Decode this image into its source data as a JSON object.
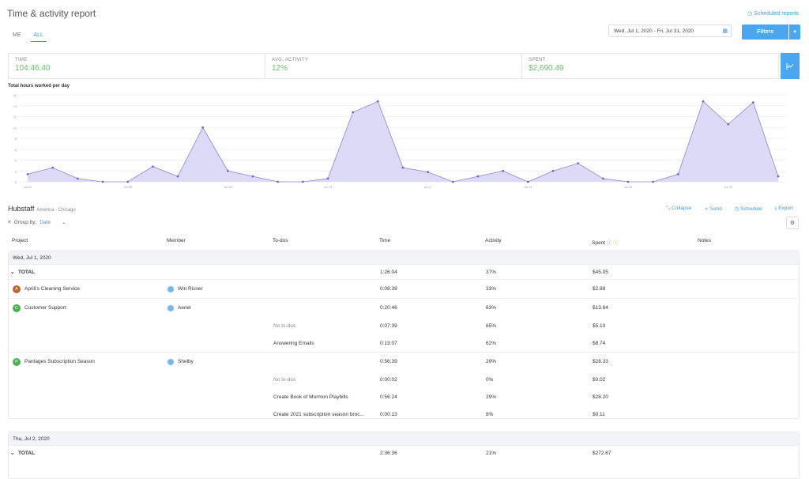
{
  "header": {
    "title": "Time & activity report",
    "scheduled_reports": "Scheduled reports"
  },
  "tabs": [
    {
      "label": "ME"
    },
    {
      "label": "ALL",
      "active": true
    }
  ],
  "date_range": "Wed, Jul 1, 2020 - Fri, Jul 31, 2020",
  "filters_label": "Filters",
  "stats": [
    {
      "label": "TIME",
      "value": "104:46:40"
    },
    {
      "label": "AVG. ACTIVITY",
      "value": "12%"
    },
    {
      "label": "SPENT",
      "value": "$2,690.49"
    }
  ],
  "chart_data": {
    "type": "area",
    "title": "Total hours worked per day",
    "y_ticks": [
      "16",
      "14",
      "12",
      "10",
      "8",
      "6",
      "4",
      "2",
      "0"
    ],
    "ylim": [
      0,
      16
    ],
    "x_labels": [
      "Jul 01",
      "Jul 05",
      "Jul 09",
      "Jul 13",
      "Jul 17",
      "Jul 21",
      "Jul 25",
      "Jul 29"
    ],
    "series": [
      {
        "values": [
          1.4,
          2.6,
          0.6,
          0.0,
          0.0,
          2.8,
          1.0,
          10.0,
          2.0,
          1.0,
          0.0,
          0.0,
          0.6,
          12.8,
          14.8,
          2.6,
          1.8,
          0.0,
          1.0,
          2.0,
          0.0,
          2.0,
          3.4,
          0.6,
          0.0,
          0.0,
          1.4,
          14.8,
          10.6,
          14.6,
          1.0
        ]
      }
    ],
    "colors": {
      "fill": "#dcdaf7",
      "line": "#8b85e0"
    }
  },
  "org": {
    "name": "Hubstaff",
    "timezone": "America - Chicago"
  },
  "actions": [
    "Collapse",
    "Send",
    "Schedule",
    "Export"
  ],
  "group_by": {
    "label": "Group by:",
    "value": "Date"
  },
  "columns": [
    "Project",
    "Member",
    "To-dos",
    "Time",
    "Activity",
    "Spent",
    "Notes"
  ],
  "groups": [
    {
      "date": "Wed, Jul 1, 2020",
      "total": {
        "label": "TOTAL",
        "time": "1:26:04",
        "activity": "37%",
        "spent": "$45.05"
      },
      "rows": [
        {
          "project": "Aprill's Cleaning Service",
          "initial": "A",
          "color": "#c2622d",
          "member": "Win Risner",
          "todo": "",
          "time": "0:08:39",
          "activity": "33%",
          "spent": "$2.88"
        },
        {
          "project": "Customer Support",
          "initial": "C",
          "color": "#4caf50",
          "member": "Aeriel",
          "todo": "",
          "time": "0:20:46",
          "activity": "63%",
          "spent": "$13.84"
        },
        {
          "project": "",
          "member": "",
          "todo": "No to-dos",
          "muted": true,
          "time": "0:07:39",
          "activity": "65%",
          "spent": "$5.10"
        },
        {
          "project": "",
          "member": "",
          "todo": "Answering Emails",
          "time": "0:13:07",
          "activity": "62%",
          "spent": "$8.74"
        },
        {
          "project": "Pantages Subscription Season",
          "initial": "P",
          "color": "#4caf50",
          "member": "Shelby",
          "todo": "",
          "time": "0:56:39",
          "activity": "29%",
          "spent": "$28.33"
        },
        {
          "project": "",
          "member": "",
          "todo": "No to-dos",
          "muted": true,
          "time": "0:00:02",
          "activity": "0%",
          "spent": "$0.02"
        },
        {
          "project": "",
          "member": "",
          "todo": "Create Book of Mormon Playbills",
          "time": "0:56:24",
          "activity": "29%",
          "spent": "$28.20"
        },
        {
          "project": "",
          "member": "",
          "todo": "Create 2021 subscription season broc...",
          "time": "0:00:13",
          "activity": "8%",
          "spent": "$0.11"
        }
      ]
    },
    {
      "date": "Thu, Jul 2, 2020",
      "total": {
        "label": "TOTAL",
        "time": "2:36:36",
        "activity": "21%",
        "spent": "$272.67"
      },
      "rows": []
    }
  ]
}
